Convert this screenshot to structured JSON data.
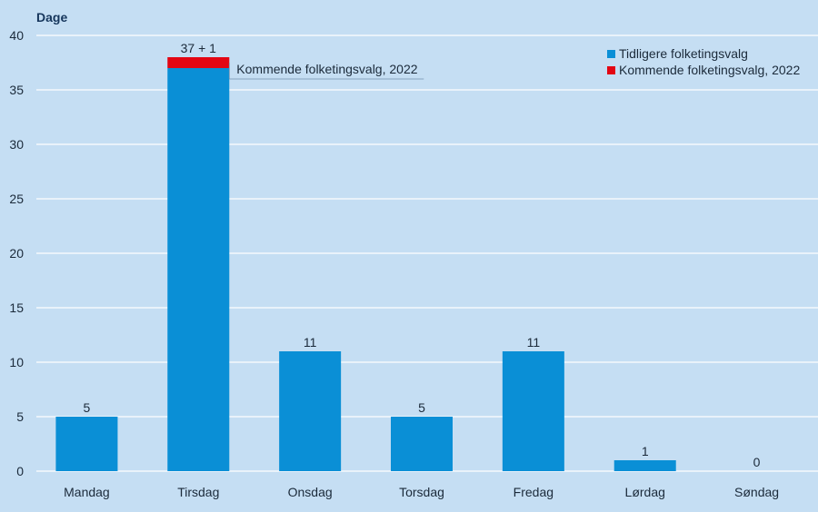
{
  "chart_data": {
    "type": "bar",
    "stacked": true,
    "ylabel": "Dage",
    "xlabel": "",
    "ylim": [
      0,
      40
    ],
    "yticks": [
      0,
      5,
      10,
      15,
      20,
      25,
      30,
      35,
      40
    ],
    "categories": [
      "Mandag",
      "Tirsdag",
      "Onsdag",
      "Torsdag",
      "Fredag",
      "Lørdag",
      "Søndag"
    ],
    "series": [
      {
        "name": "Tidligere folketingsvalg",
        "color": "#0a8fd6",
        "values": [
          5,
          37,
          11,
          5,
          11,
          1,
          0
        ]
      },
      {
        "name": "Kommende folketingsvalg, 2022",
        "color": "#e30613",
        "values": [
          0,
          1,
          0,
          0,
          0,
          0,
          0
        ]
      }
    ],
    "data_labels": [
      "5",
      "37 + 1",
      "11",
      "5",
      "11",
      "1",
      "0"
    ],
    "annotation": {
      "text": "Kommende folketingsvalg, 2022",
      "category": "Tirsdag"
    },
    "grid": true,
    "legend_position": "top-right"
  }
}
